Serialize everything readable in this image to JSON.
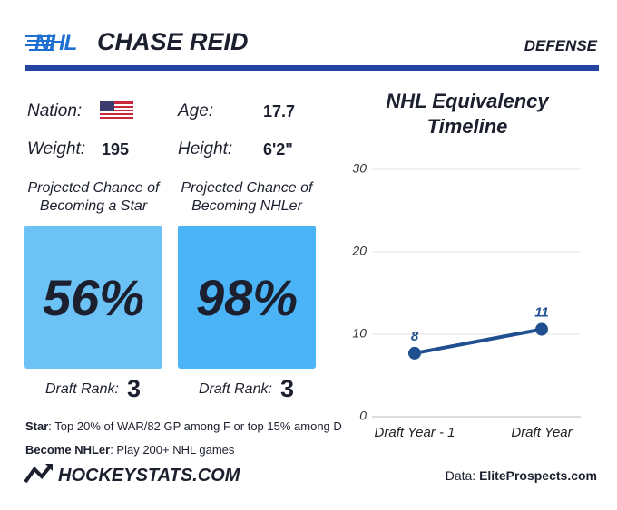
{
  "header": {
    "brand": "NHL",
    "name": "CHASE REID",
    "position": "DEFENSE"
  },
  "profile": {
    "nation_label": "Nation:",
    "age_label": "Age:",
    "age": "17.7",
    "weight_label": "Weight:",
    "weight": "195",
    "height_label": "Height:",
    "height": "6'2\""
  },
  "cards": [
    {
      "title": "Projected Chance of Becoming a Star",
      "value": "56%",
      "rank_label": "Draft Rank:",
      "rank": 3,
      "color": "#6cc1f5"
    },
    {
      "title": "Projected Chance of Becoming NHLer",
      "value": "98%",
      "rank_label": "Draft Rank:",
      "rank": 3,
      "color": "#4bb4f6"
    }
  ],
  "notes": [
    {
      "term": "Star",
      "text": ": Top 20% of WAR/82 GP among F or top 15% among D"
    },
    {
      "term": "Become NHLer",
      "text": ": Play 200+ NHL games"
    }
  ],
  "footer": {
    "brand": "HOCKEYSTATS.COM",
    "source_prefix": "Data:",
    "source": "EliteProspects.com"
  },
  "chart_data": {
    "type": "line",
    "title": "NHL Equivalency Timeline",
    "categories": [
      "Draft Year - 1",
      "Draft Year"
    ],
    "values": [
      7.7,
      10.6
    ],
    "value_labels": [
      "8",
      "11"
    ],
    "color": "#1f4f8f",
    "ylim": [
      0,
      30
    ],
    "yticks": [
      0,
      10,
      20,
      30
    ],
    "grid": true
  }
}
